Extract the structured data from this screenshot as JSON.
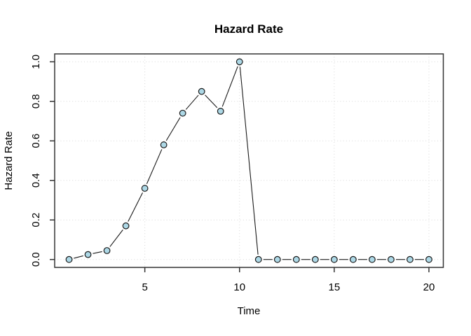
{
  "title": "Hazard Rate",
  "xlabel": "Time",
  "ylabel": "Hazard Rate",
  "colors": {
    "background": "#ffffff",
    "frame": "#333333",
    "grid": "#d8d8d8",
    "line": "#1a1a1a",
    "point_fill": "#add8e6",
    "point_stroke": "#1a1a1a",
    "text": "#000000"
  },
  "chart_data": {
    "type": "line",
    "style": "r-base-type-b",
    "title": "Hazard Rate",
    "xlabel": "Time",
    "ylabel": "Hazard Rate",
    "x": [
      1,
      2,
      3,
      4,
      5,
      6,
      7,
      8,
      9,
      10,
      11,
      12,
      13,
      14,
      15,
      16,
      17,
      18,
      19,
      20
    ],
    "y": [
      0,
      0.025,
      0.045,
      0.17,
      0.36,
      0.58,
      0.74,
      0.85,
      0.75,
      1,
      0,
      0,
      0,
      0,
      0,
      0,
      0,
      0,
      0,
      0
    ],
    "xlim": [
      1,
      20
    ],
    "ylim": [
      0,
      1
    ],
    "x_ticks": [
      5,
      10,
      15,
      20
    ],
    "y_ticks": [
      0,
      0.2,
      0.4,
      0.6,
      0.8,
      1
    ],
    "x_tick_labels": [
      "5",
      "10",
      "15",
      "20"
    ],
    "y_tick_labels": [
      "0.0",
      "0.2",
      "0.4",
      "0.6",
      "0.8",
      "1.0"
    ],
    "grid": true,
    "grid_style": "dotted",
    "legend_position": "none",
    "marker": "circle-filled"
  }
}
